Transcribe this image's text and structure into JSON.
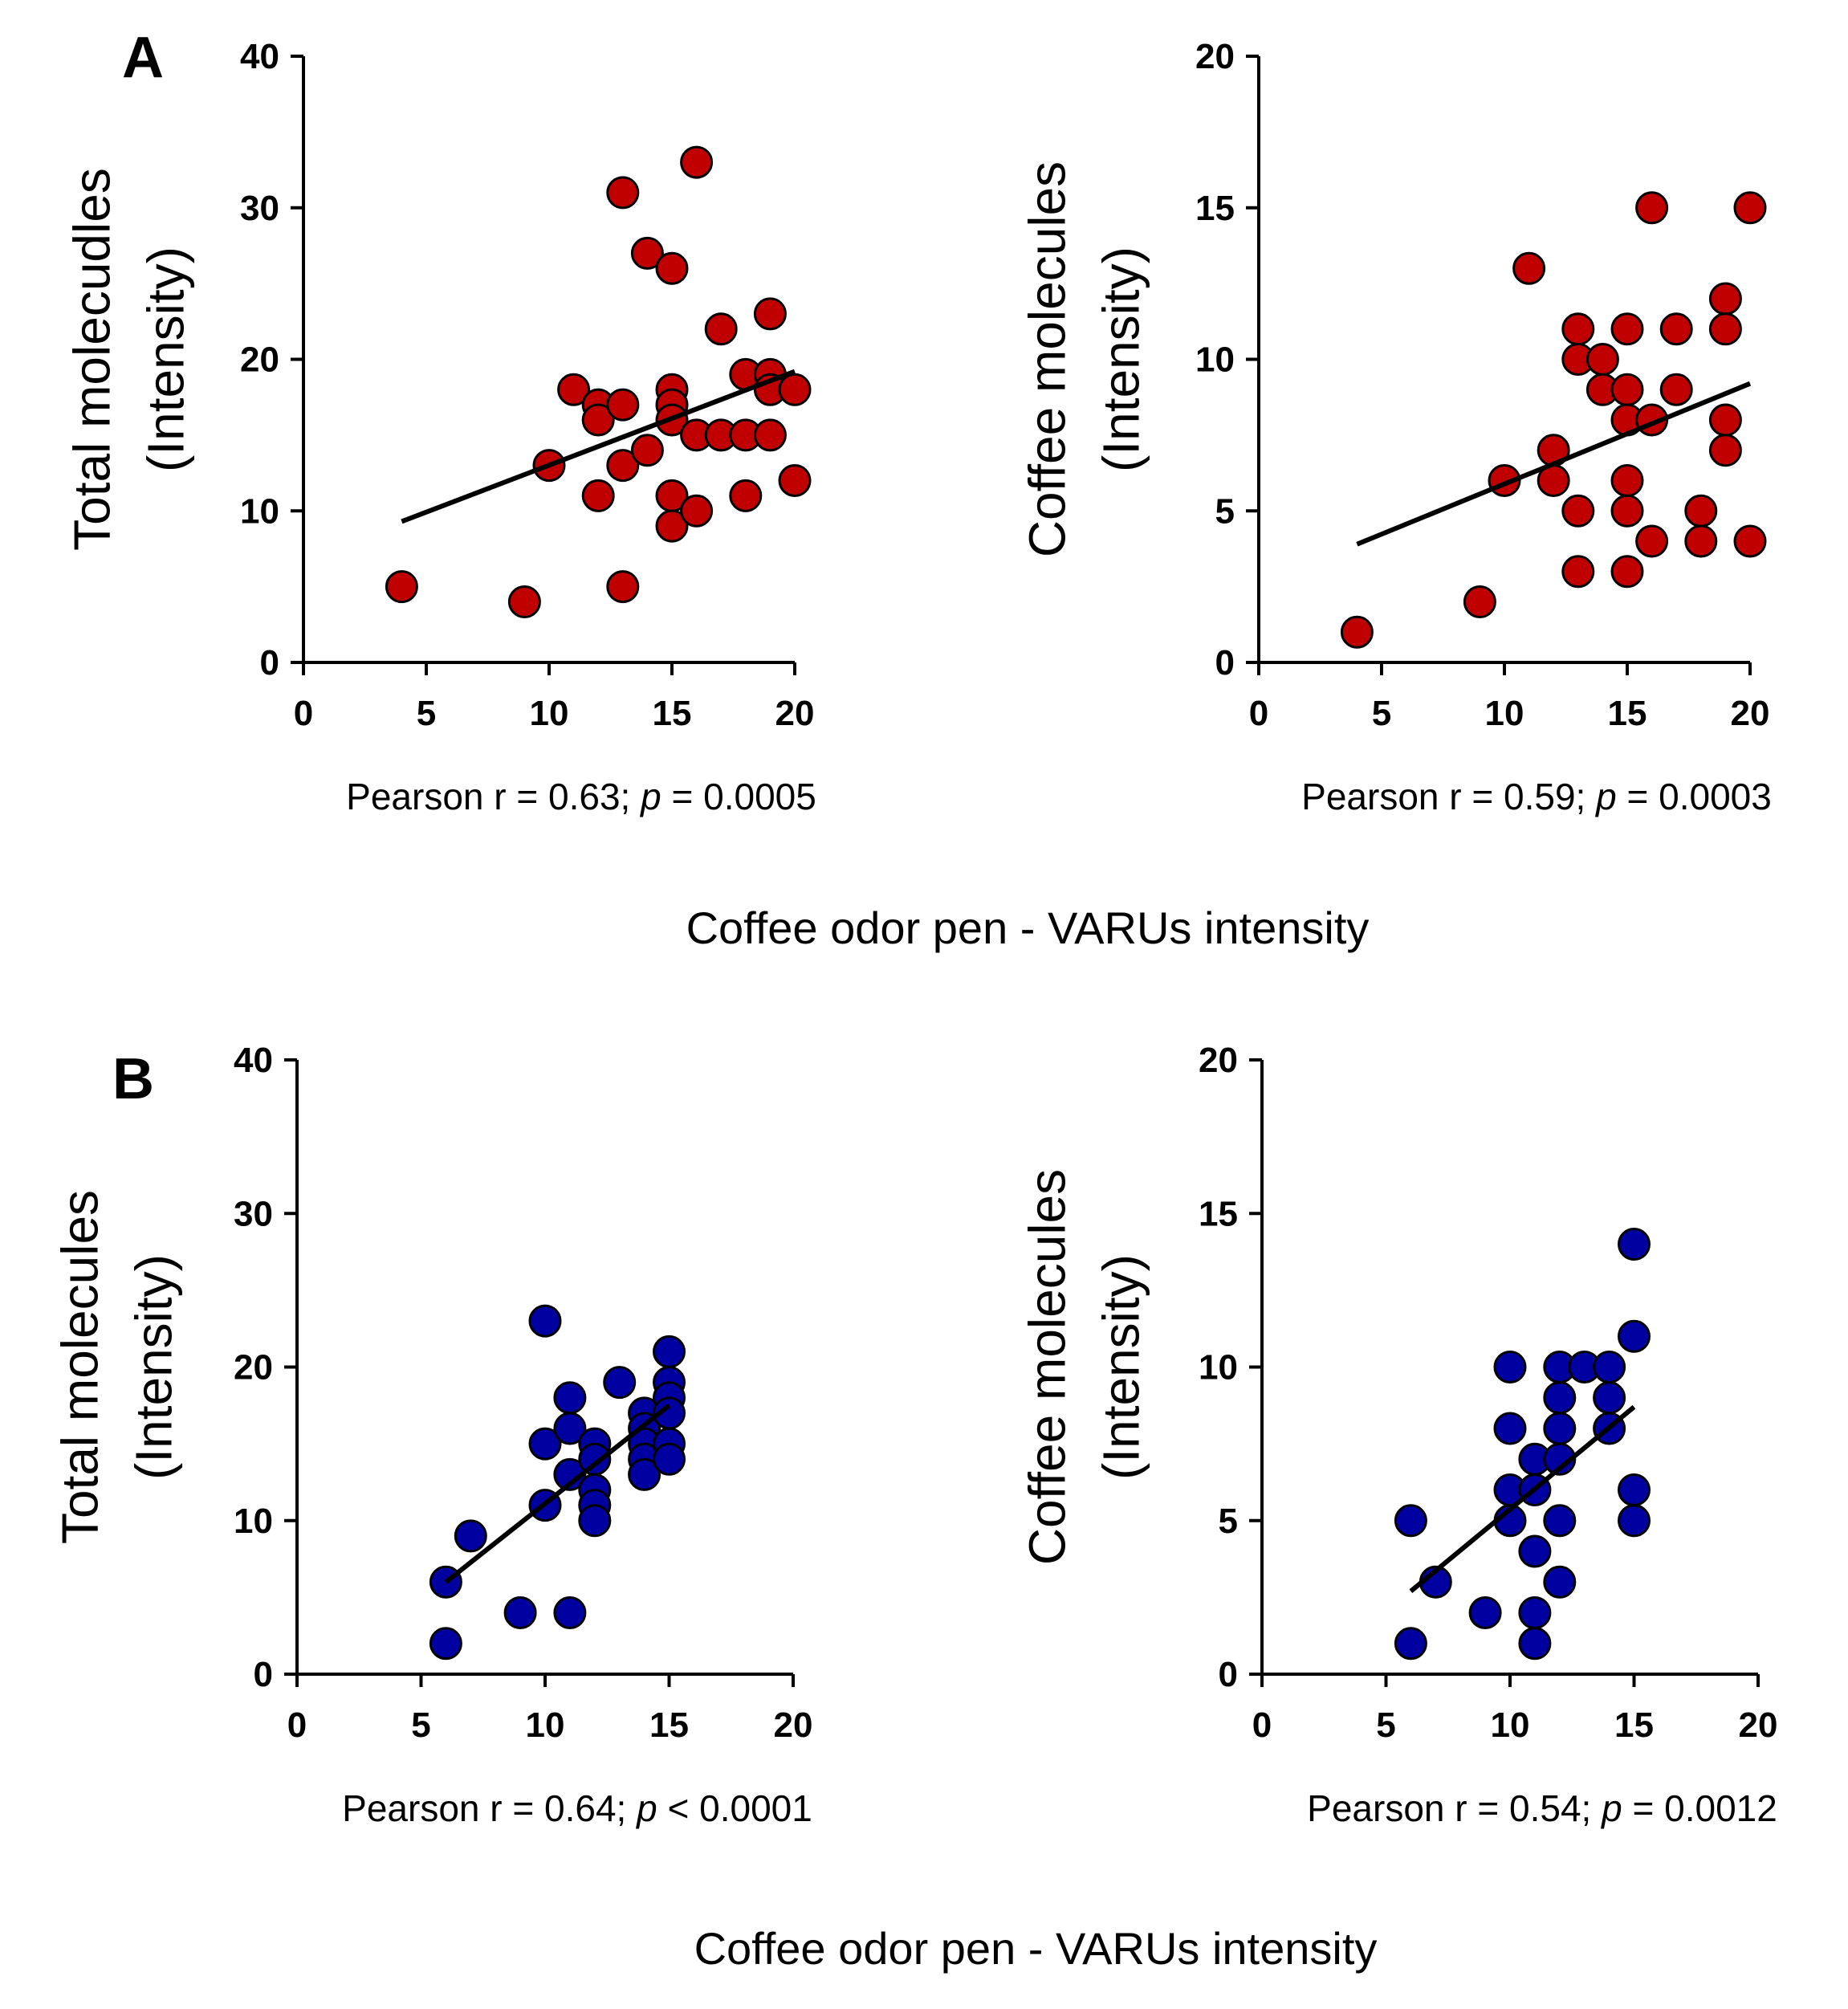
{
  "panels": [
    {
      "letter": "A",
      "shared_xlabel": "Coffee odor pen - VARUs intensity"
    },
    {
      "letter": "B",
      "shared_xlabel": "Coffee odor pen - VARUs intensity"
    }
  ],
  "colors": {
    "panel_A_points": "#c00000",
    "panel_B_points": "#0000a0",
    "axis": "#000000",
    "trendline": "#000000"
  },
  "chart_data": [
    {
      "id": "A-left",
      "panel": "A",
      "type": "scatter",
      "ylabel_line1": "Total molecudles",
      "ylabel_line2": "(Intensity)",
      "xlim": [
        0,
        20
      ],
      "ylim": [
        0,
        40
      ],
      "xticks": [
        0,
        5,
        10,
        15,
        20
      ],
      "yticks": [
        0,
        10,
        20,
        30,
        40
      ],
      "stat_prefix": "Pearson r = 0.63; ",
      "stat_p": "p",
      "stat_suffix": " = 0.0005",
      "trendline": {
        "x1": 4,
        "y1": 9.3,
        "x2": 20,
        "y2": 19.2
      },
      "points": [
        [
          4,
          5
        ],
        [
          9,
          4
        ],
        [
          10,
          13
        ],
        [
          11,
          18
        ],
        [
          12,
          17
        ],
        [
          12,
          16
        ],
        [
          12,
          11
        ],
        [
          13,
          31
        ],
        [
          13,
          17
        ],
        [
          13,
          13
        ],
        [
          13,
          5
        ],
        [
          14,
          27
        ],
        [
          14,
          14
        ],
        [
          15,
          26
        ],
        [
          15,
          18
        ],
        [
          15,
          17
        ],
        [
          15,
          16
        ],
        [
          15,
          11
        ],
        [
          15,
          9
        ],
        [
          16,
          33
        ],
        [
          16,
          15
        ],
        [
          16,
          10
        ],
        [
          17,
          22
        ],
        [
          17,
          15
        ],
        [
          18,
          19
        ],
        [
          18,
          15
        ],
        [
          18,
          11
        ],
        [
          19,
          23
        ],
        [
          19,
          19
        ],
        [
          19,
          18
        ],
        [
          19,
          15
        ],
        [
          20,
          18
        ],
        [
          20,
          12
        ]
      ]
    },
    {
      "id": "A-right",
      "panel": "A",
      "type": "scatter",
      "ylabel_line1": "Coffee molecules",
      "ylabel_line2": "(Intensity)",
      "xlim": [
        0,
        20
      ],
      "ylim": [
        0,
        20
      ],
      "xticks": [
        0,
        5,
        10,
        15,
        20
      ],
      "yticks": [
        0,
        5,
        10,
        15,
        20
      ],
      "stat_prefix": "Pearson r = 0.59; ",
      "stat_p": "p",
      "stat_suffix": " = 0.0003",
      "trendline": {
        "x1": 4,
        "y1": 3.9,
        "x2": 20,
        "y2": 9.2
      },
      "points": [
        [
          4,
          1
        ],
        [
          9,
          2
        ],
        [
          10,
          6
        ],
        [
          11,
          13
        ],
        [
          12,
          7
        ],
        [
          12,
          6
        ],
        [
          13,
          11
        ],
        [
          13,
          10
        ],
        [
          13,
          5
        ],
        [
          13,
          3
        ],
        [
          14,
          10
        ],
        [
          14,
          9
        ],
        [
          15,
          11
        ],
        [
          15,
          9
        ],
        [
          15,
          8
        ],
        [
          15,
          6
        ],
        [
          15,
          5
        ],
        [
          15,
          3
        ],
        [
          16,
          15
        ],
        [
          16,
          8
        ],
        [
          16,
          4
        ],
        [
          17,
          11
        ],
        [
          17,
          9
        ],
        [
          18,
          5
        ],
        [
          18,
          4
        ],
        [
          19,
          12
        ],
        [
          19,
          11
        ],
        [
          19,
          8
        ],
        [
          19,
          7
        ],
        [
          20,
          15
        ],
        [
          20,
          4
        ]
      ]
    },
    {
      "id": "B-left",
      "panel": "B",
      "type": "scatter",
      "ylabel_line1": "Total molecules",
      "ylabel_line2": "(Intensity)",
      "xlim": [
        0,
        20
      ],
      "ylim": [
        0,
        40
      ],
      "xticks": [
        0,
        5,
        10,
        15,
        20
      ],
      "yticks": [
        0,
        10,
        20,
        30,
        40
      ],
      "stat_prefix": "Pearson r = 0.64; ",
      "stat_p": "p",
      "stat_suffix": " < 0.0001",
      "trendline": {
        "x1": 6,
        "y1": 6.0,
        "x2": 15,
        "y2": 17.5
      },
      "points": [
        [
          6,
          6
        ],
        [
          6,
          2
        ],
        [
          7,
          9
        ],
        [
          9,
          4
        ],
        [
          10,
          23
        ],
        [
          10,
          15
        ],
        [
          10,
          11
        ],
        [
          11,
          18
        ],
        [
          11,
          16
        ],
        [
          11,
          13
        ],
        [
          11,
          4
        ],
        [
          12,
          15
        ],
        [
          12,
          14
        ],
        [
          12,
          12
        ],
        [
          12,
          11
        ],
        [
          12,
          10
        ],
        [
          13,
          19
        ],
        [
          14,
          17
        ],
        [
          14,
          16
        ],
        [
          14,
          15
        ],
        [
          14,
          14
        ],
        [
          14,
          13
        ],
        [
          15,
          21
        ],
        [
          15,
          19
        ],
        [
          15,
          18
        ],
        [
          15,
          17
        ],
        [
          15,
          15
        ],
        [
          15,
          14
        ]
      ]
    },
    {
      "id": "B-right",
      "panel": "B",
      "type": "scatter",
      "ylabel_line1": "Coffee molecules",
      "ylabel_line2": "(Intensity)",
      "xlim": [
        0,
        20
      ],
      "ylim": [
        0,
        20
      ],
      "xticks": [
        0,
        5,
        10,
        15,
        20
      ],
      "yticks": [
        0,
        5,
        10,
        15,
        20
      ],
      "stat_prefix": "Pearson r = 0.54; ",
      "stat_p": "p",
      "stat_suffix": " = 0.0012",
      "trendline": {
        "x1": 6,
        "y1": 2.7,
        "x2": 15,
        "y2": 8.7
      },
      "points": [
        [
          6,
          5
        ],
        [
          6,
          1
        ],
        [
          7,
          3
        ],
        [
          9,
          2
        ],
        [
          10,
          10
        ],
        [
          10,
          8
        ],
        [
          10,
          6
        ],
        [
          10,
          5
        ],
        [
          11,
          7
        ],
        [
          11,
          6
        ],
        [
          11,
          4
        ],
        [
          11,
          2
        ],
        [
          11,
          1
        ],
        [
          12,
          10
        ],
        [
          12,
          9
        ],
        [
          12,
          8
        ],
        [
          12,
          7
        ],
        [
          12,
          5
        ],
        [
          12,
          3
        ],
        [
          13,
          10
        ],
        [
          14,
          10
        ],
        [
          14,
          9
        ],
        [
          14,
          8
        ],
        [
          15,
          14
        ],
        [
          15,
          11
        ],
        [
          15,
          6
        ],
        [
          15,
          5
        ]
      ]
    }
  ]
}
